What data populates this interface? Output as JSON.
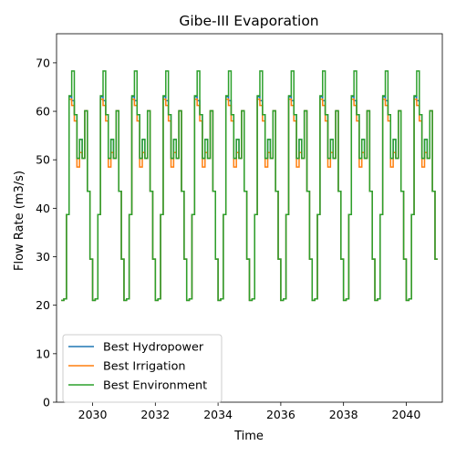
{
  "chart_data": {
    "type": "line",
    "title": "Gibe-III Evaporation",
    "xlabel": "Time",
    "ylabel": "Flow Rate (m3/s)",
    "xlim": [
      2028.85,
      2041.15
    ],
    "ylim": [
      0,
      76
    ],
    "x_ticks": [
      2030,
      2032,
      2034,
      2036,
      2038,
      2040
    ],
    "y_ticks": [
      0,
      10,
      20,
      30,
      40,
      50,
      60,
      70
    ],
    "grid": false,
    "legend_position": "lower-left",
    "x_unit": "decimal year",
    "monthly_pattern_note": "Monthly step series Jan 2029 – Dec 2040; the 12-month pattern repeats every year.",
    "series": [
      {
        "name": "Best Hydropower",
        "color": "#1f77b4",
        "start_year": 2029,
        "monthly_pattern": [
          21.0,
          21.3,
          38.7,
          63.0,
          62.2,
          59.3,
          50.3,
          54.2,
          50.3,
          60.1,
          43.5,
          29.5
        ]
      },
      {
        "name": "Best Irrigation",
        "color": "#ff7f0e",
        "start_year": 2029,
        "monthly_pattern": [
          21.0,
          21.3,
          38.7,
          62.5,
          61.2,
          58.0,
          48.5,
          51.5,
          50.3,
          60.1,
          43.5,
          29.5
        ]
      },
      {
        "name": "Best Environment",
        "color": "#2ca02c",
        "start_year": 2029,
        "monthly_pattern": [
          21.0,
          21.3,
          38.7,
          63.2,
          68.3,
          59.3,
          50.3,
          54.2,
          50.3,
          60.1,
          43.5,
          29.5
        ]
      }
    ]
  }
}
